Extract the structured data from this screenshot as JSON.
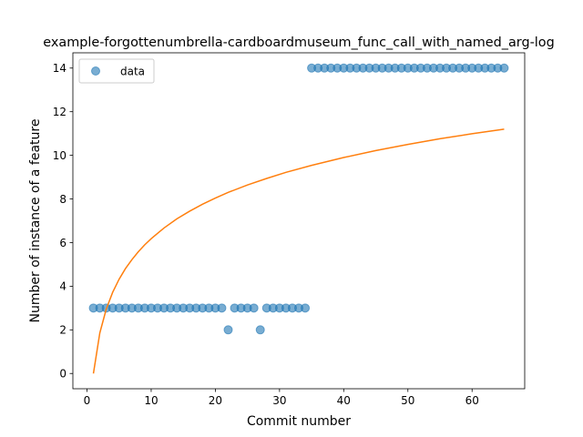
{
  "chart_data": {
    "type": "scatter",
    "title": "example-forgottenumbrella-cardboardmuseum_func_call_with_named_arg-log",
    "xlabel": "Commit number",
    "ylabel": "Number of instance of a feature",
    "xlim": [
      -2.2,
      68.2
    ],
    "ylim": [
      -0.7,
      14.7
    ],
    "xticks": [
      0,
      10,
      20,
      30,
      40,
      50,
      60
    ],
    "yticks": [
      0,
      2,
      4,
      6,
      8,
      10,
      12,
      14
    ],
    "grid": false,
    "legend": {
      "position": "top-left",
      "entries": [
        "data"
      ]
    },
    "colors": {
      "points": "#1f77b4",
      "fit": "#ff7f0e"
    },
    "series": [
      {
        "name": "data",
        "kind": "scatter",
        "x": [
          1,
          2,
          3,
          4,
          5,
          6,
          7,
          8,
          9,
          10,
          11,
          12,
          13,
          14,
          15,
          16,
          17,
          18,
          19,
          20,
          21,
          22,
          23,
          24,
          25,
          26,
          27,
          28,
          29,
          30,
          31,
          32,
          33,
          34,
          35,
          36,
          37,
          38,
          39,
          40,
          41,
          42,
          43,
          44,
          45,
          46,
          47,
          48,
          49,
          50,
          51,
          52,
          53,
          54,
          55,
          56,
          57,
          58,
          59,
          60,
          61,
          62,
          63,
          64,
          65
        ],
        "y": [
          3,
          3,
          3,
          3,
          3,
          3,
          3,
          3,
          3,
          3,
          3,
          3,
          3,
          3,
          3,
          3,
          3,
          3,
          3,
          3,
          3,
          2,
          3,
          3,
          3,
          3,
          2,
          3,
          3,
          3,
          3,
          3,
          3,
          3,
          14,
          14,
          14,
          14,
          14,
          14,
          14,
          14,
          14,
          14,
          14,
          14,
          14,
          14,
          14,
          14,
          14,
          14,
          14,
          14,
          14,
          14,
          14,
          14,
          14,
          14,
          14,
          14,
          14,
          14,
          14
        ]
      },
      {
        "kind": "line",
        "x": [
          1,
          2,
          3,
          4,
          5,
          6,
          7,
          8,
          9,
          10,
          12,
          14,
          16,
          18,
          20,
          22,
          25,
          28,
          31,
          35,
          40,
          45,
          50,
          55,
          60,
          65
        ],
        "y": [
          0,
          1.86,
          2.95,
          3.72,
          4.32,
          4.81,
          5.22,
          5.58,
          5.9,
          6.18,
          6.67,
          7.09,
          7.44,
          7.76,
          8.04,
          8.3,
          8.64,
          8.94,
          9.22,
          9.54,
          9.9,
          10.22,
          10.5,
          10.76,
          10.99,
          11.2
        ]
      }
    ]
  }
}
